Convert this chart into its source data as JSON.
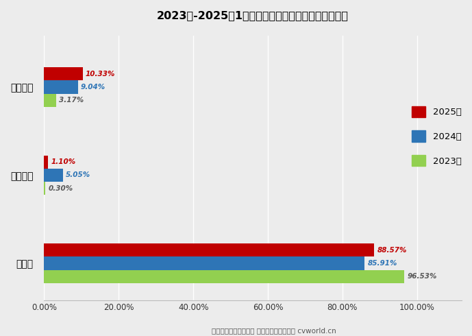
{
  "title": "2023年-2025年1月新能源轻卡市场燃料类型占比对比",
  "categories": [
    "混合动力",
    "燃料电池",
    "纯电动"
  ],
  "series": {
    "2025年": [
      10.33,
      1.1,
      88.57
    ],
    "2024年": [
      9.04,
      5.05,
      85.91
    ],
    "2023年": [
      3.17,
      0.3,
      96.53
    ]
  },
  "colors": {
    "2025年": "#C00000",
    "2024年": "#2E75B6",
    "2023年": "#92D050"
  },
  "label_colors": {
    "2025年": "#C00000",
    "2024年": "#2E75B6",
    "2023年": "#595959"
  },
  "xlim": [
    0,
    112
  ],
  "xticks": [
    0,
    20,
    40,
    60,
    80,
    100
  ],
  "xtick_labels": [
    "0.00%",
    "20.00%",
    "40.00%",
    "60.00%",
    "80.00%",
    "100.00%"
  ],
  "footer": "数据来源：交强险统计 制图：第一商用车网 cvworld.cn",
  "background_color": "#ECECEC",
  "bar_height": 0.18,
  "bar_gap": 0.0,
  "group_centers": [
    2.0,
    1.0,
    0.0
  ],
  "ytick_positions": [
    2.0,
    1.0,
    0.0
  ]
}
